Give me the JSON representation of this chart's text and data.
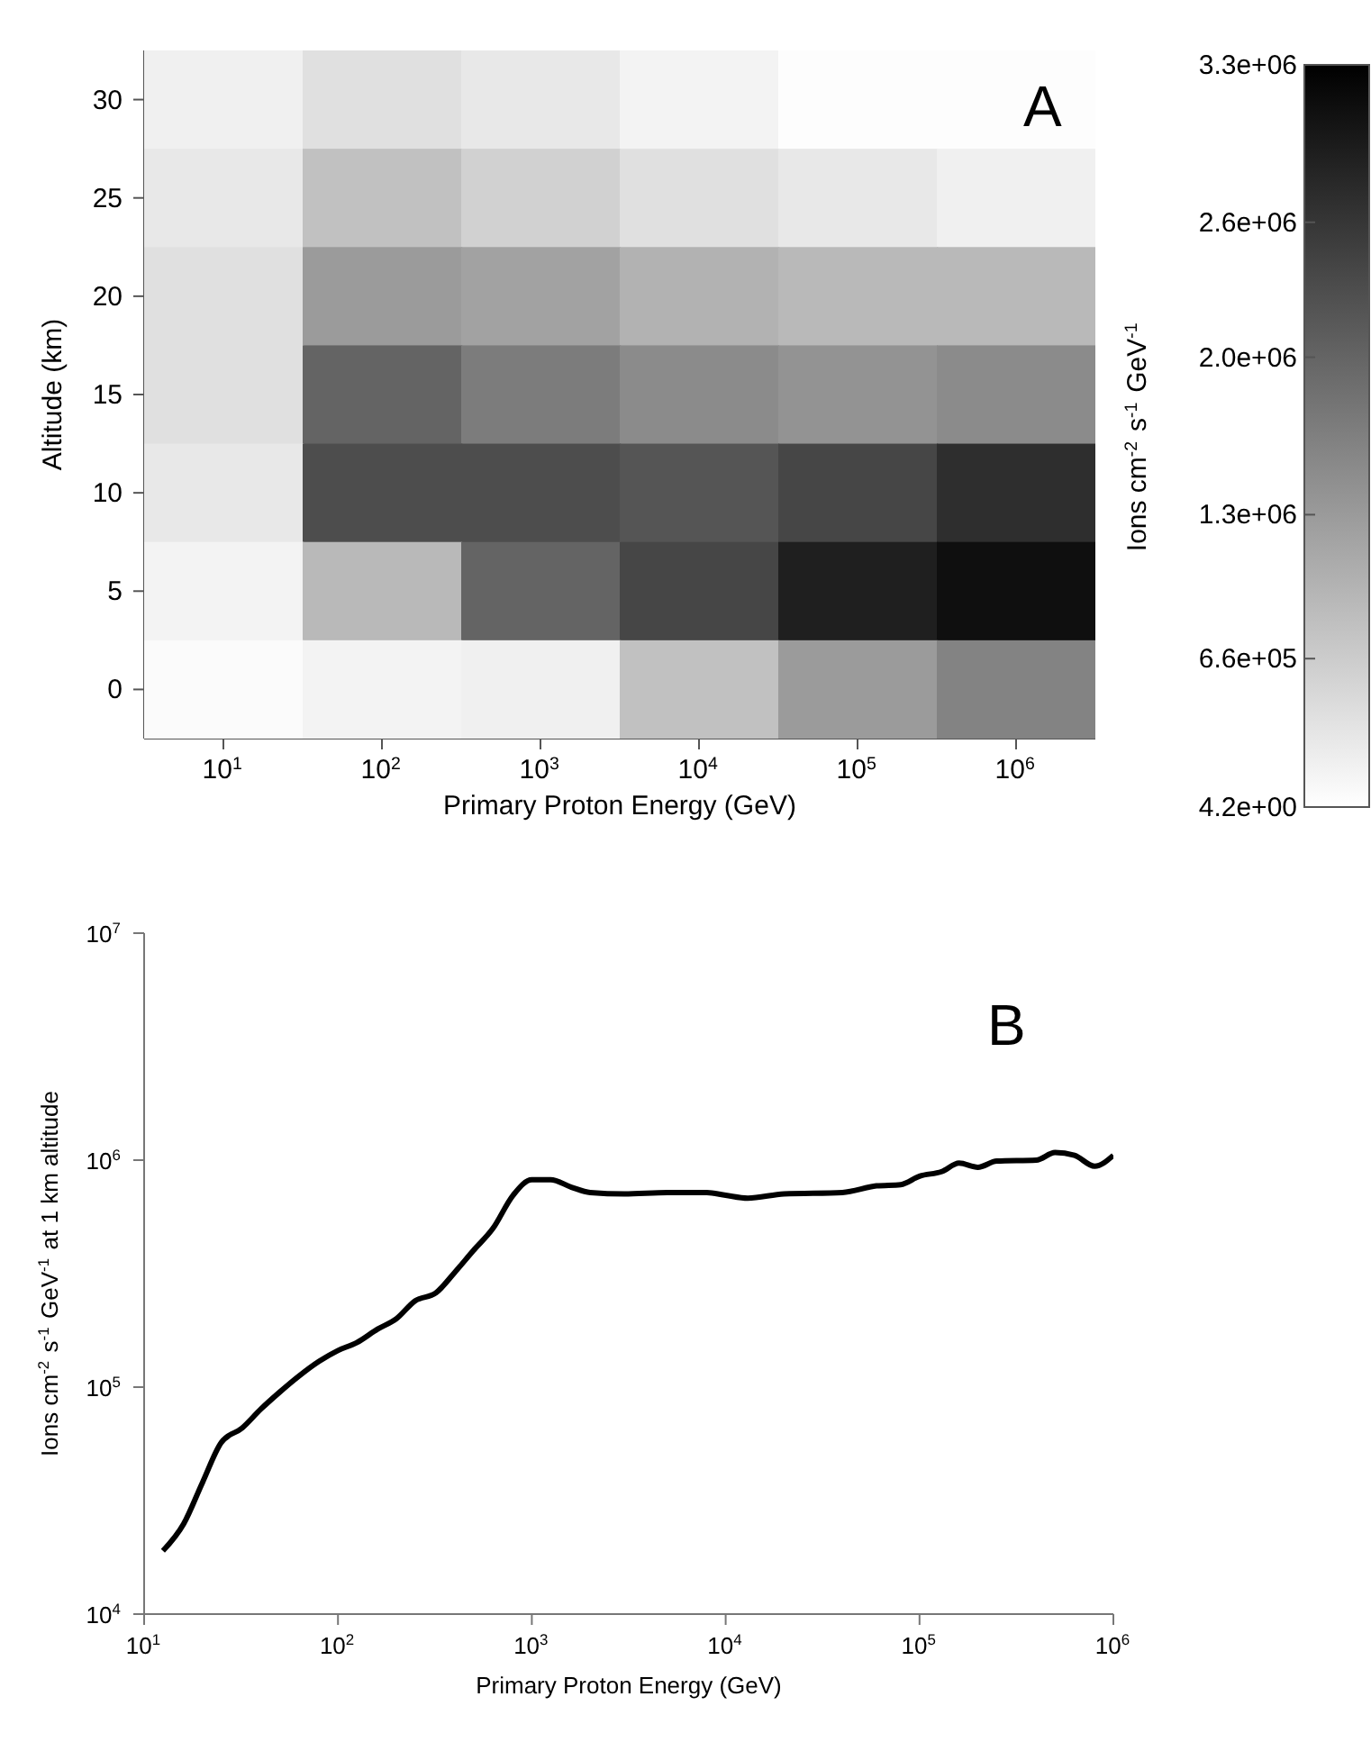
{
  "chart_data": [
    {
      "type": "heatmap",
      "xlabel": "Primary Proton Energy (GeV)",
      "ylabel": "Altitude (km)",
      "clabel": "Ions cm$^{-2}$ s$^{-1}$ GeV$^{-1}$",
      "categories": [
        "10$^{1}$",
        "10$^{2}$",
        "10$^{3}$",
        "10$^{4}$",
        "10$^{5}$",
        "10$^{6}$"
      ],
      "y_categories": [
        "30",
        "25",
        "20",
        "15",
        "10",
        "5",
        "0"
      ],
      "cells": [
        [
          200000,
          400000,
          300000,
          150000,
          20000,
          20000
        ],
        [
          300000,
          800000,
          600000,
          400000,
          300000,
          200000
        ],
        [
          400000,
          1300000,
          1200000,
          1000000,
          900000,
          900000
        ],
        [
          400000,
          2000000,
          1700000,
          1500000,
          1400000,
          1500000
        ],
        [
          300000,
          2300000,
          2300000,
          2200000,
          2400000,
          2700000
        ],
        [
          150000,
          900000,
          2000000,
          2400000,
          2900000,
          3100000
        ],
        [
          50000,
          150000,
          200000,
          800000,
          1300000,
          1600000
        ]
      ],
      "clim": [
        4.2,
        3300000
      ],
      "cticks": [
        {
          "value": 4.2,
          "label": "4.2e+00"
        },
        {
          "value": 660000,
          "label": "6.6e+05"
        },
        {
          "value": 1300000,
          "label": "1.3e+06"
        },
        {
          "value": 2000000,
          "label": "2.0e+06"
        },
        {
          "value": 2600000,
          "label": "2.6e+06"
        },
        {
          "value": 3300000,
          "label": "3.3e+06"
        }
      ],
      "annotations": [
        "A"
      ]
    },
    {
      "type": "line",
      "xlabel": "Primary Proton Energy (GeV)",
      "ylabel": "Ions cm$^{-2}$ s$^{-1}$ GeV$^{-1}$ at 1 km altitude",
      "log": "xy",
      "xlim": [
        10,
        1000000
      ],
      "xticks": [
        {
          "value": 10,
          "label": "10$^{1}$"
        },
        {
          "value": 100,
          "label": "10$^{2}$"
        },
        {
          "value": 1000,
          "label": "10$^{3}$"
        },
        {
          "value": 10000,
          "label": "10$^{4}$"
        },
        {
          "value": 100000,
          "label": "10$^{5}$"
        },
        {
          "value": 1000000,
          "label": "10$^{6}$"
        }
      ],
      "ylim": [
        10000,
        10000000
      ],
      "yticks": [
        {
          "value": 10000,
          "label": "10$^{4}$"
        },
        {
          "value": 100000,
          "label": "10$^{5}$"
        },
        {
          "value": 1000000,
          "label": "10$^{6}$"
        },
        {
          "value": 10000000,
          "label": "10$^{7}$"
        }
      ],
      "marker": "none",
      "line_style": "solid",
      "series": [
        {
          "color": "#000000",
          "x": [
            12.5,
            16,
            20,
            25,
            32,
            40,
            50,
            63,
            80,
            100,
            125,
            160,
            200,
            250,
            320,
            400,
            500,
            630,
            800,
            1000,
            1250,
            1600,
            2000,
            3000,
            5000,
            8000,
            10000,
            13000,
            20000,
            40000,
            60000,
            80000,
            100000,
            130000,
            160000,
            200000,
            250000,
            400000,
            500000,
            630000,
            800000,
            1000000
          ],
          "values": [
            19000,
            25000,
            38000,
            57000,
            66000,
            80000,
            95000,
            112000,
            130000,
            145000,
            157000,
            180000,
            200000,
            240000,
            260000,
            320000,
            400000,
            500000,
            700000,
            820000,
            820000,
            760000,
            720000,
            710000,
            720000,
            720000,
            700000,
            680000,
            710000,
            720000,
            770000,
            780000,
            850000,
            890000,
            970000,
            930000,
            990000,
            1000000,
            1080000,
            1050000,
            940000,
            1050000
          ]
        }
      ],
      "annotations": [
        "B"
      ]
    }
  ]
}
